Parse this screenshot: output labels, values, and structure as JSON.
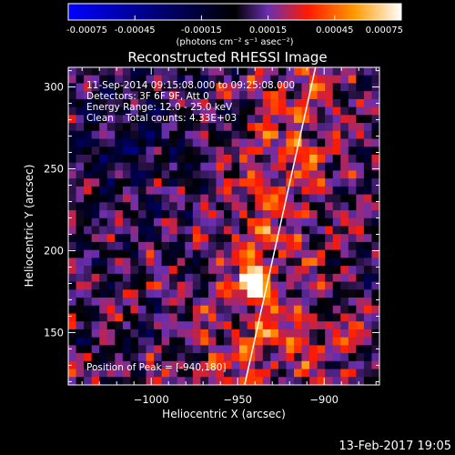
{
  "chart_data": {
    "type": "heatmap",
    "title": "Reconstructed RHESSI Image",
    "xlabel": "Heliocentric X (arcsec)",
    "ylabel": "Heliocentric Y (arcsec)",
    "xlim": [
      -1048,
      -868
    ],
    "ylim": [
      118,
      312
    ],
    "xticks": [
      -1000,
      -950,
      -900
    ],
    "xtick_labels": [
      "−1000",
      "−950",
      "−900"
    ],
    "yticks": [
      150,
      200,
      250,
      300
    ],
    "ytick_labels": [
      "150",
      "200",
      "250",
      "300"
    ],
    "annotations": [
      "11-Sep-2014 09:15:08.000 to 09:25:08.000",
      "Detectors: 3F 6F 9F, Att 0",
      "Energy Range: 12.0 - 25.0 keV",
      "Clean    Total counts: 4.33E+03"
    ],
    "peak_label": "Position of Peak = [-940,180]",
    "peak": [
      -940,
      180
    ],
    "limb_line": [
      [
        -946,
        118
      ],
      [
        -905,
        312
      ]
    ],
    "colorbar": {
      "vmin": -0.00075,
      "vmax": 0.00075,
      "ticks": [
        -0.00075,
        -0.00045,
        -0.00015,
        0.00015,
        0.00045,
        0.00075
      ],
      "tick_labels": [
        "-0.00075",
        "-0.00045",
        "-0.00015",
        "0.00015",
        "0.00045",
        "0.00075"
      ],
      "label": "(photons cm⁻² s⁻¹ asec⁻²)",
      "colormap": [
        "#0000ff",
        "#000000",
        "#6a2fb0",
        "#ff1a00",
        "#ff9a00",
        "#ffffff"
      ]
    }
  },
  "footer": {
    "timestamp": "13-Feb-2017 19:05"
  }
}
